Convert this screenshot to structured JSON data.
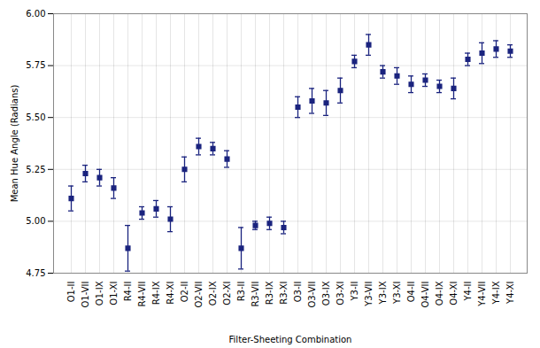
{
  "chart_data": {
    "type": "errorbar",
    "categories": [
      "O1-II",
      "O1-VII",
      "O1-IX",
      "O1-XI",
      "R4-II",
      "R4-VII",
      "R4-IX",
      "R4-XI",
      "O2-II",
      "O2-VII",
      "O2-IX",
      "O2-XI",
      "R3-II",
      "R3-VII",
      "R3-IX",
      "R3-XI",
      "O3-II",
      "O3-VII",
      "O3-IX",
      "O3-XI",
      "Y3-II",
      "Y3-VII",
      "Y3-IX",
      "Y3-XI",
      "O4-II",
      "O4-VII",
      "O4-IX",
      "O4-XI",
      "Y4-II",
      "Y4-VII",
      "Y4-IX",
      "Y4-XI"
    ],
    "values": [
      5.11,
      5.23,
      5.21,
      5.16,
      4.87,
      5.04,
      5.06,
      5.01,
      5.25,
      5.36,
      5.35,
      5.3,
      4.87,
      4.98,
      4.99,
      4.97,
      5.55,
      5.58,
      5.57,
      5.63,
      5.77,
      5.85,
      5.72,
      5.7,
      5.66,
      5.68,
      5.65,
      5.64,
      5.78,
      5.81,
      5.83,
      5.82
    ],
    "errors": [
      0.06,
      0.04,
      0.04,
      0.05,
      0.11,
      0.03,
      0.04,
      0.06,
      0.06,
      0.04,
      0.03,
      0.04,
      0.1,
      0.02,
      0.03,
      0.03,
      0.05,
      0.06,
      0.06,
      0.06,
      0.03,
      0.05,
      0.03,
      0.04,
      0.04,
      0.03,
      0.03,
      0.05,
      0.03,
      0.05,
      0.04,
      0.03
    ],
    "color": "#1a237e",
    "marker": "square",
    "xlabel": "Filter-Sheeting Combination",
    "ylabel": "Mean Hue Angle (Radians)",
    "ylim": [
      4.75,
      6.0
    ],
    "yticks": [
      4.75,
      {
        "value": 5.0,
        "label": "5.00"
      },
      5.25,
      {
        "value": 5.5,
        "label": "5.50"
      },
      5.75,
      {
        "value": 6.0,
        "label": "6.00"
      }
    ],
    "grid": true
  }
}
